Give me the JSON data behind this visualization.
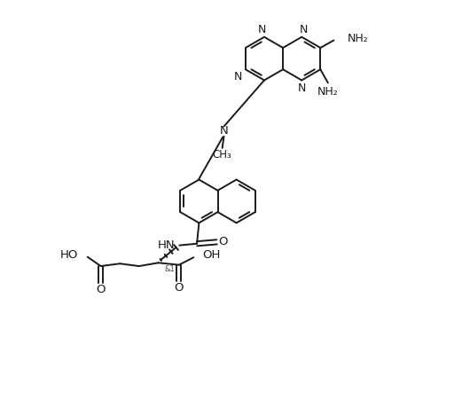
{
  "bg_color": "#ffffff",
  "line_color": "#1a1a1a",
  "line_width": 1.4,
  "font_size": 9.5,
  "fig_width": 5.21,
  "fig_height": 4.51,
  "dpi": 100,
  "xlim": [
    0,
    10.5
  ],
  "ylim": [
    0,
    9.5
  ]
}
